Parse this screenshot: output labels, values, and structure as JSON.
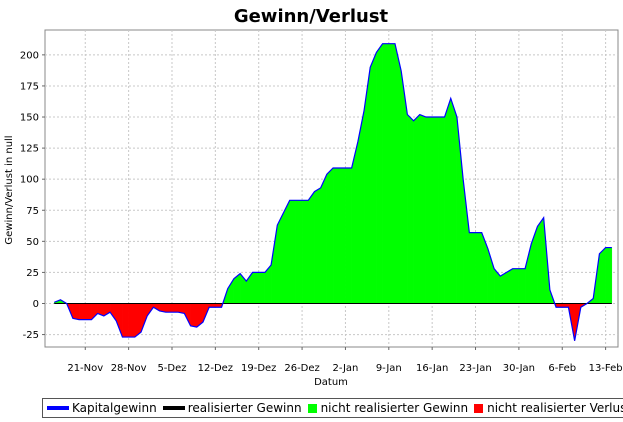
{
  "chart_data": {
    "type": "area",
    "title": "Gewinn/Verlust",
    "xlabel": "Datum",
    "ylabel": "Gewinn/Verlust in null",
    "ylim": [
      -35,
      220
    ],
    "yticks": [
      -25,
      0,
      25,
      50,
      75,
      100,
      125,
      150,
      175,
      200
    ],
    "xticks": [
      "21-Nov",
      "28-Nov",
      "5-Dez",
      "12-Dez",
      "19-Dez",
      "26-Dez",
      "2-Jan",
      "9-Jan",
      "16-Jan",
      "23-Jan",
      "30-Jan",
      "6-Feb",
      "13-Feb"
    ],
    "xtick_days": [
      7,
      14,
      21,
      28,
      35,
      42,
      49,
      56,
      63,
      70,
      77,
      84,
      91
    ],
    "xlim_days": [
      0.5,
      93
    ],
    "grid": true,
    "legend_position": "bottom",
    "series": [
      {
        "name": "Kapitalgewinn",
        "color": "#0000ff",
        "x_days": [
          2,
          3,
          4,
          5,
          6,
          7,
          8,
          9,
          10,
          11,
          12,
          13,
          14,
          15,
          16,
          17,
          18,
          19,
          20,
          21,
          22,
          23,
          24,
          25,
          26,
          27,
          28,
          29,
          30,
          31,
          32,
          33,
          34,
          35,
          36,
          37,
          38,
          39,
          40,
          41,
          42,
          43,
          44,
          45,
          46,
          47,
          48,
          49,
          50,
          51,
          52,
          53,
          54,
          55,
          56,
          57,
          58,
          59,
          60,
          61,
          62,
          63,
          64,
          65,
          66,
          67,
          68,
          69,
          70,
          71,
          72,
          73,
          74,
          75,
          76,
          77,
          78,
          79,
          80,
          81,
          82,
          83,
          84,
          85,
          86,
          87,
          88,
          89,
          90,
          91,
          92
        ],
        "values": [
          1,
          3,
          0,
          -12,
          -13,
          -13,
          -13,
          -8,
          -10,
          -7,
          -14,
          -27,
          -27,
          -27,
          -23,
          -10,
          -3,
          -6,
          -7,
          -7,
          -7,
          -8,
          -18,
          -19,
          -15,
          -3,
          -3,
          -3,
          12,
          20,
          24,
          18,
          25,
          25,
          25,
          31,
          63,
          73,
          83,
          83,
          83,
          83,
          90,
          93,
          104,
          109,
          109,
          109,
          109,
          130,
          155,
          190,
          202,
          209,
          209,
          209,
          187,
          152,
          147,
          152,
          150,
          150,
          150,
          150,
          165,
          150,
          100,
          57,
          57,
          57,
          44,
          28,
          22,
          25,
          28,
          28,
          28,
          48,
          62,
          69,
          11,
          -3,
          -3,
          -3,
          -30,
          -3,
          0,
          4,
          40,
          45,
          45
        ]
      },
      {
        "name": "realisierter Gewinn",
        "color": "#000000"
      },
      {
        "name": "nicht realisierter Gewinn",
        "color": "#00ff00"
      },
      {
        "name": "nicht realisierter Verlust",
        "color": "#ff0000"
      }
    ]
  }
}
